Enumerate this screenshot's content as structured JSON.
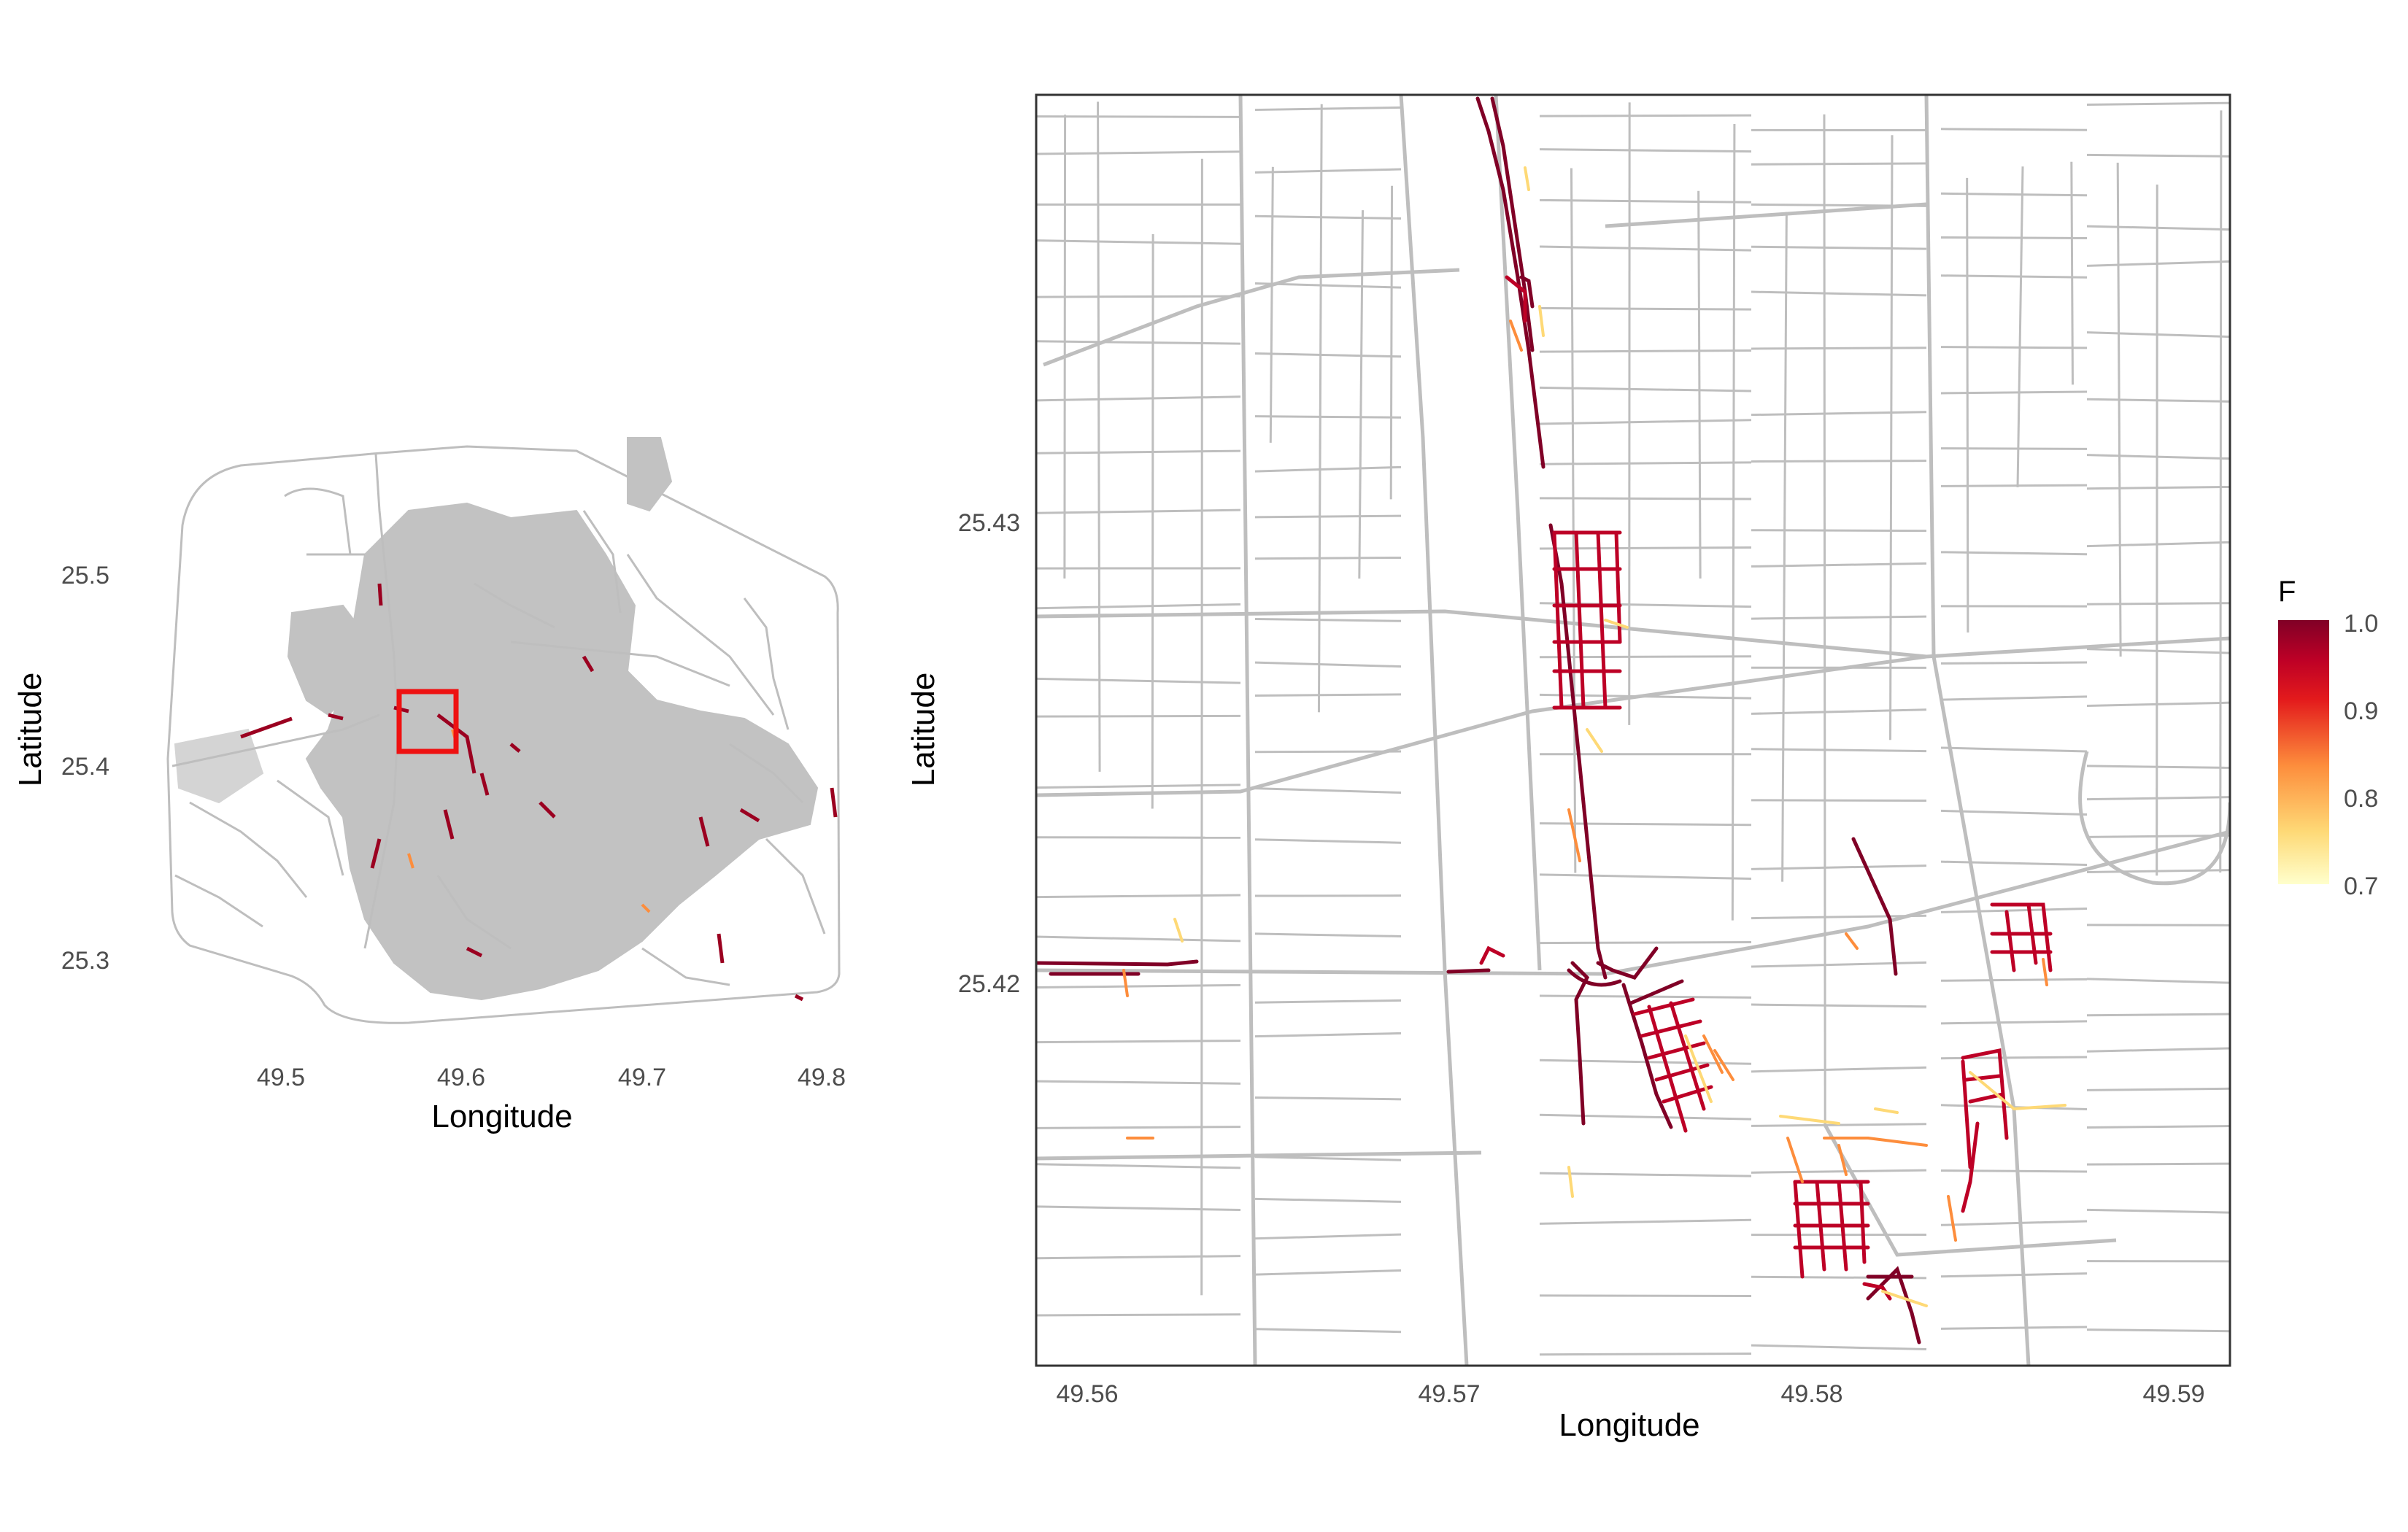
{
  "overview": {
    "xlabel": "Longitude",
    "ylabel": "Latitude",
    "xticks": [
      "49.5",
      "49.6",
      "49.7",
      "49.8"
    ],
    "yticks": [
      "25.5",
      "25.4",
      "25.3"
    ],
    "xlim": [
      49.42,
      49.82
    ],
    "ylim": [
      25.25,
      25.56
    ],
    "highlight_box": {
      "lon": [
        49.561,
        49.591
      ],
      "lat": [
        25.412,
        25.433
      ],
      "color": "#ee1111"
    }
  },
  "detail": {
    "xlabel": "Longitude",
    "ylabel": "Latitude",
    "xticks": [
      "49.56",
      "49.57",
      "49.58",
      "49.59"
    ],
    "yticks": [
      "25.43",
      "25.42"
    ],
    "xlim": [
      49.5585,
      49.5915
    ],
    "ylim": [
      25.4123,
      25.4398
    ]
  },
  "legend": {
    "title": "F",
    "ticks": [
      "1.0",
      "0.9",
      "0.8",
      "0.7"
    ],
    "range": [
      0.7,
      1.0
    ],
    "colors": [
      "#ffffcc",
      "#fed976",
      "#fd8d3c",
      "#e31a1c",
      "#bd0026",
      "#800026"
    ]
  },
  "colors": {
    "road": "#bebebe",
    "panel_border": "#333333"
  }
}
